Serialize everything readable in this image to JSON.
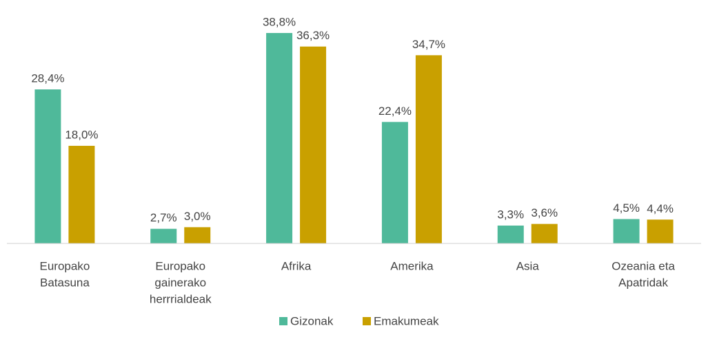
{
  "chart_data": {
    "type": "bar",
    "categories": [
      [
        "Europako",
        "Batasuna"
      ],
      [
        "Europako",
        "gainerako",
        "herrrialdeak"
      ],
      [
        "Afrika"
      ],
      [
        "Amerika"
      ],
      [
        "Asia"
      ],
      [
        "Ozeania eta",
        "Apatridak"
      ]
    ],
    "series": [
      {
        "name": "Gizonak",
        "color": "#4fb99a",
        "values": [
          28.4,
          2.7,
          38.8,
          22.4,
          3.3,
          4.5
        ],
        "value_labels": [
          "28,4%",
          "2,7%",
          "38,8%",
          "22,4%",
          "3,3%",
          "4,5%"
        ]
      },
      {
        "name": "Emakumeak",
        "color": "#c9a000",
        "values": [
          18.0,
          3.0,
          36.3,
          34.7,
          3.6,
          4.4
        ],
        "value_labels": [
          "18,0%",
          "3,0%",
          "36,3%",
          "34,7%",
          "3,6%",
          "4,4%"
        ]
      }
    ],
    "ylim": [
      0,
      40
    ],
    "legend": "bottom"
  }
}
